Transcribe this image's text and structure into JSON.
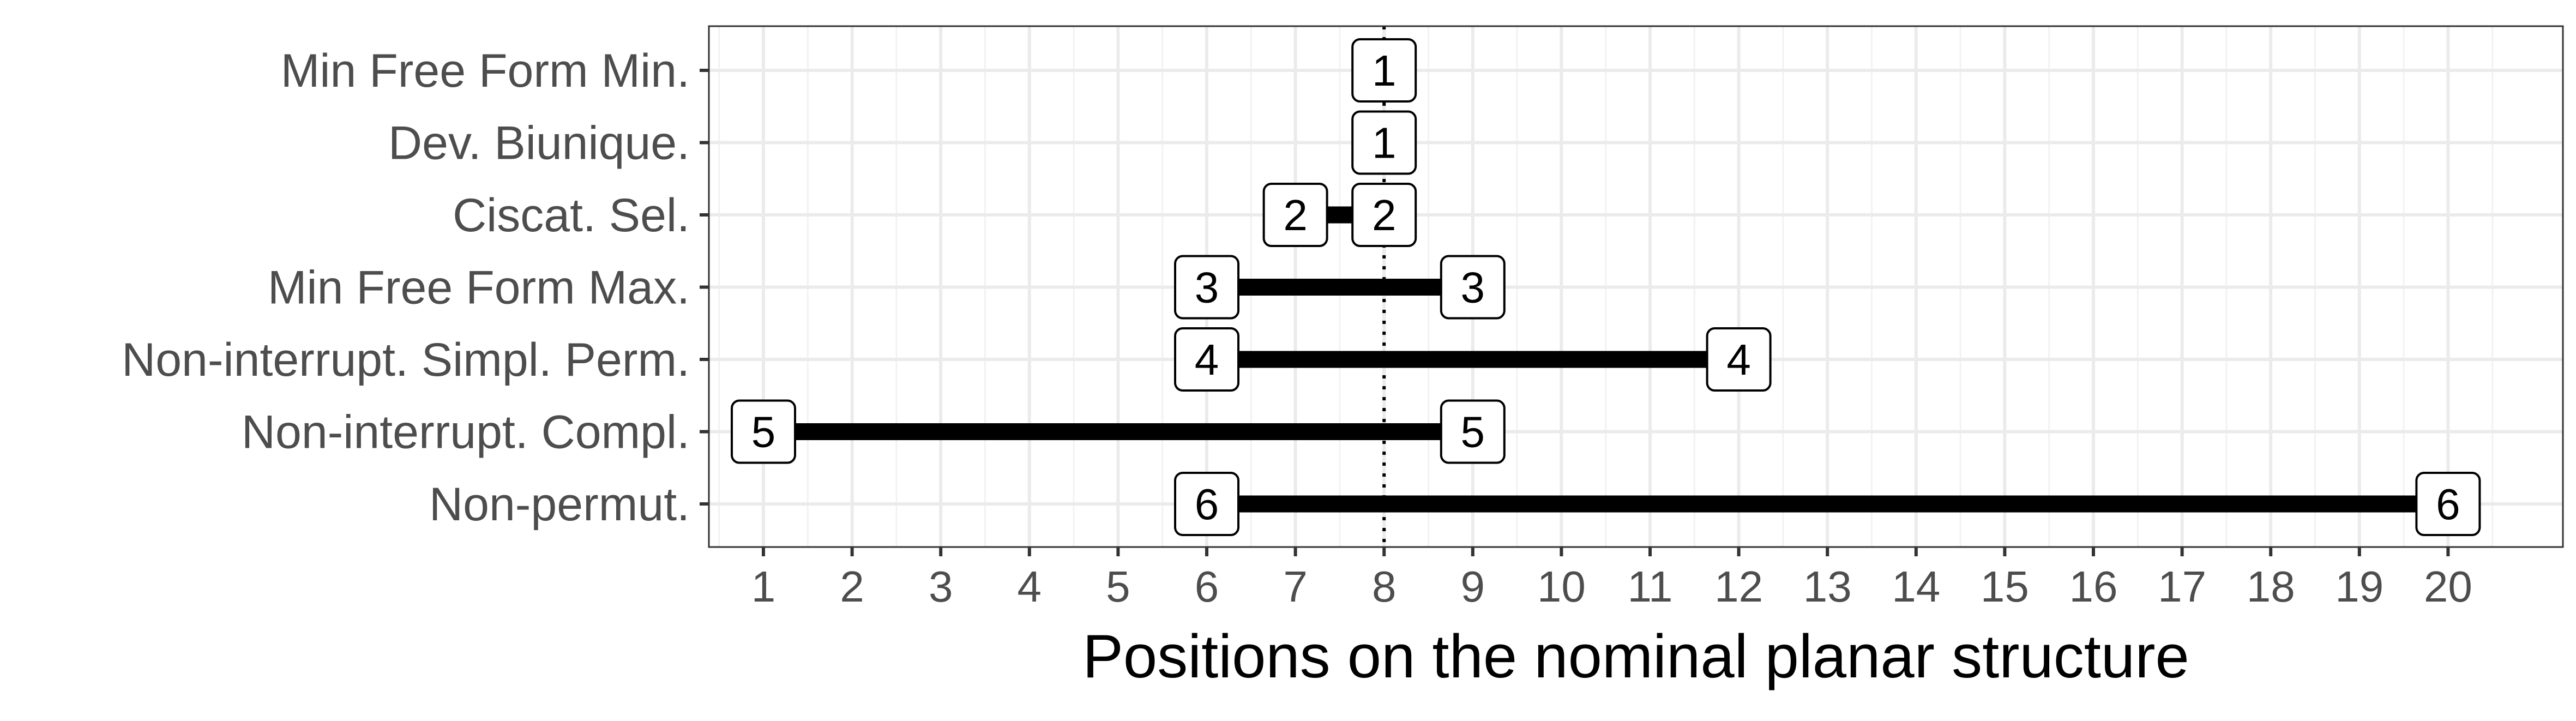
{
  "chart_data": {
    "type": "range-bar",
    "xlabel": "Positions on the nominal planar structure",
    "ylabel": "",
    "xlim": [
      0,
      21
    ],
    "x_ticks": [
      1,
      2,
      3,
      4,
      5,
      6,
      7,
      8,
      9,
      10,
      11,
      12,
      13,
      14,
      15,
      16,
      17,
      18,
      19,
      20
    ],
    "grid": true,
    "reference_line": {
      "x": 8,
      "style": "dotted"
    },
    "rows": [
      {
        "label": "Min Free Form Min.",
        "start": 8,
        "end": 8,
        "value": "1"
      },
      {
        "label": "Dev. Biunique.",
        "start": 8,
        "end": 8,
        "value": "1"
      },
      {
        "label": "Ciscat. Sel.",
        "start": 7,
        "end": 8,
        "value": "2"
      },
      {
        "label": "Min Free Form Max.",
        "start": 6,
        "end": 9,
        "value": "3"
      },
      {
        "label": "Non-interrupt. Simpl. Perm.",
        "start": 6,
        "end": 12,
        "value": "4"
      },
      {
        "label": "Non-interrupt. Compl.",
        "start": 1,
        "end": 9,
        "value": "5"
      },
      {
        "label": "Non-permut.",
        "start": 6,
        "end": 20,
        "value": "6"
      }
    ]
  }
}
